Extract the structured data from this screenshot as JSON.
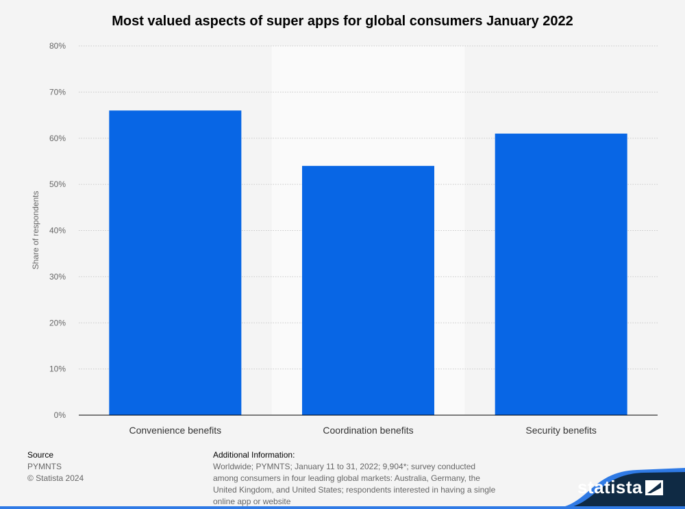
{
  "chart_data": {
    "type": "bar",
    "title": "Most valued aspects of super apps for global consumers January 2022",
    "categories": [
      "Convenience benefits",
      "Coordination benefits",
      "Security benefits"
    ],
    "values": [
      66,
      54,
      61
    ],
    "ylabel": "Share of respondents",
    "xlabel": "",
    "ylim": [
      0,
      80
    ],
    "yticks": [
      "0%",
      "10%",
      "20%",
      "30%",
      "40%",
      "50%",
      "60%",
      "70%",
      "80%"
    ],
    "grid": true,
    "bar_color": "#0866e5",
    "highlight_band_color": "#fafafa"
  },
  "footer": {
    "source_label": "Source",
    "source_lines": [
      "PYMNTS",
      "© Statista 2024"
    ],
    "info_label": "Additional Information:",
    "info_text": "Worldwide; PYMNTS; January 11 to 31, 2022; 9,904*; survey conducted among consumers in four leading global markets: Australia, Germany, the United Kingdom, and United States; respondents interested in having a single online app or website",
    "logo": "statista"
  }
}
